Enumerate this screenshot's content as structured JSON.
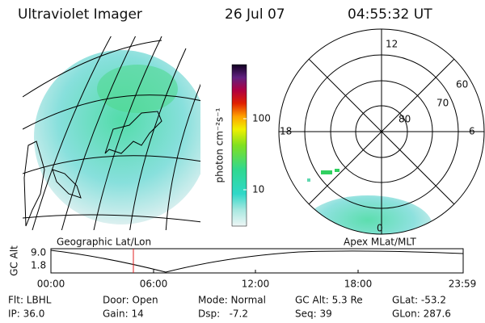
{
  "header": {
    "instrument": "Ultraviolet Imager",
    "date": "26 Jul 07",
    "time": "04:55:32 UT"
  },
  "colorbar": {
    "label": "photon cm⁻²s⁻¹",
    "ticks": [
      "100",
      "10"
    ]
  },
  "polar": {
    "mlt_labels": [
      "12",
      "18",
      "6",
      "0"
    ],
    "lat_labels": [
      "60",
      "70",
      "80"
    ]
  },
  "panels": {
    "left": "Geographic Lat/Lon",
    "right": "Apex MLat/MLT"
  },
  "timeline": {
    "axis_label": "GC Alt",
    "y_labels": [
      "9.0",
      "1.8"
    ],
    "x_labels": [
      "00:00",
      "06:00",
      "12:00",
      "18:00",
      "23:59"
    ]
  },
  "footer": [
    "Flt: LBHL",
    "IP: 36.0",
    "Door: Open",
    "Gain: 14",
    "Mode: Normal",
    "Dsp:   -7.2",
    "GC Alt: 5.3 Re",
    "Seq: 39",
    "GLat: -53.2",
    "GLon: 287.6"
  ]
}
